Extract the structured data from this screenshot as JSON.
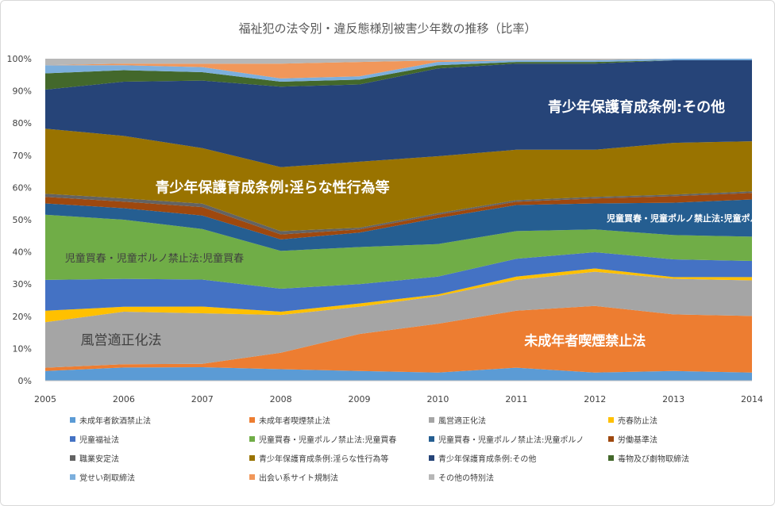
{
  "chart_data": {
    "type": "area",
    "stacked": true,
    "normalized": true,
    "title": "福祉犯の法令別・違反態様別被害少年数の推移（比率）",
    "x": [
      "2005",
      "2006",
      "2007",
      "2008",
      "2009",
      "2010",
      "2011",
      "2012",
      "2013",
      "2014"
    ],
    "ylim": [
      0,
      100
    ],
    "yticks": [
      "0%",
      "10%",
      "20%",
      "30%",
      "40%",
      "50%",
      "60%",
      "70%",
      "80%",
      "90%",
      "100%"
    ],
    "grid": false,
    "legend_position": "bottom",
    "series": [
      {
        "name": "未成年者飲酒禁止法",
        "color": "#5b9bd5",
        "values": [
          3,
          4,
          4,
          3.5,
          3,
          2.5,
          4,
          2.5,
          3,
          2.5
        ]
      },
      {
        "name": "未成年者喫煙禁止法",
        "color": "#ed7d31",
        "values": [
          1,
          1,
          1,
          5,
          11.5,
          15,
          17.5,
          20.5,
          17.5,
          17.5
        ]
      },
      {
        "name": "風営適正化法",
        "color": "#a5a5a5",
        "values": [
          14,
          16,
          15,
          11.5,
          8.5,
          8.5,
          9.5,
          10.5,
          11,
          11
        ]
      },
      {
        "name": "売春防止法",
        "color": "#ffc000",
        "values": [
          3.5,
          1.5,
          2,
          1,
          1,
          0.5,
          1,
          1,
          0.5,
          1
        ]
      },
      {
        "name": "児童福祉法",
        "color": "#4472c4",
        "values": [
          9.5,
          8.5,
          8,
          7,
          6,
          5.5,
          5.5,
          5,
          5.5,
          5
        ]
      },
      {
        "name": "児童買春・児童ポルノ禁止法:児童買春",
        "color": "#70ad47",
        "values": [
          20,
          18,
          15,
          11.5,
          11.5,
          10,
          8.5,
          7,
          7.5,
          7.5
        ]
      },
      {
        "name": "児童買春・児童ポルノ禁止法:児童ポルノ",
        "color": "#255e91",
        "values": [
          3.5,
          3.5,
          4,
          3.5,
          4.5,
          8,
          8,
          8,
          10,
          11.5
        ]
      },
      {
        "name": "労働基準法",
        "color": "#9e480e",
        "values": [
          2,
          2,
          2.5,
          1.5,
          1,
          1,
          1,
          1.5,
          2,
          2
        ]
      },
      {
        "name": "職業安定法",
        "color": "#636363",
        "values": [
          1,
          1,
          1,
          1,
          0.5,
          0.5,
          0.5,
          0.5,
          0.5,
          0.5
        ]
      },
      {
        "name": "青少年保護育成条例:淫らな性行為等",
        "color": "#997300",
        "values": [
          20,
          19,
          16.5,
          19.5,
          20.5,
          17.5,
          15.5,
          14.5,
          16,
          15.5
        ]
      },
      {
        "name": "青少年保護育成条例:その他",
        "color": "#264478",
        "values": [
          12,
          16.5,
          20,
          24.5,
          24,
          27,
          26.5,
          26.5,
          25.5,
          25
        ]
      },
      {
        "name": "毒物及び劇物取締法",
        "color": "#43682b",
        "values": [
          5,
          3.5,
          2.5,
          1.5,
          1.5,
          1,
          0.5,
          0.5,
          0,
          0
        ]
      },
      {
        "name": "覚せい剤取締法",
        "color": "#7cafdd",
        "values": [
          2.5,
          1.5,
          1.5,
          1,
          1,
          1,
          0.5,
          0.5,
          0.5,
          0.5
        ]
      },
      {
        "name": "出会い系サイト規制法",
        "color": "#f1975a",
        "values": [
          0,
          0.5,
          1,
          4.5,
          4.5,
          0.5,
          0,
          0,
          0,
          0
        ]
      },
      {
        "name": "その他の特別法",
        "color": "#b7b7b7",
        "values": [
          2,
          1.5,
          1.5,
          1.5,
          1,
          0.5,
          0.5,
          0.5,
          0,
          0
        ]
      }
    ],
    "annotations": [
      {
        "text": "青少年保護育成条例:その他",
        "x_index": 6.4,
        "y": 83.5,
        "size": 18,
        "style": "white"
      },
      {
        "text": "青少年保護育成条例:淫らな性行為等",
        "x_index": 1.4,
        "y": 58.5,
        "size": 18,
        "style": "white"
      },
      {
        "text": "児童買春・児童ポルノ禁止法:児童ポルノ",
        "x_index": 7.15,
        "y": 49.5,
        "size": 11,
        "style": "white"
      },
      {
        "text": "児童買春・児童ポルノ禁止法:児童買春",
        "x_index": 0.25,
        "y": 37.0,
        "size": 13,
        "style": "dark"
      },
      {
        "text": "風営適正化法",
        "x_index": 0.45,
        "y": 11.2,
        "size": 17,
        "style": "dark"
      },
      {
        "text": "未成年者喫煙禁止法",
        "x_index": 6.1,
        "y": 11.0,
        "size": 17,
        "style": "white"
      }
    ]
  }
}
